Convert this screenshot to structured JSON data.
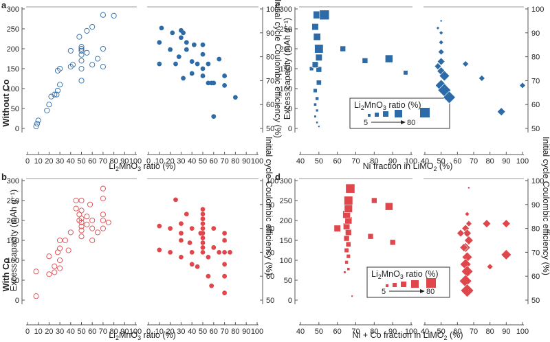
{
  "figure": {
    "row_labels": [
      "Without Co",
      "With Co"
    ],
    "y_label_left": "Excess capacity (mAh g⁻¹)",
    "y_label_right": "Initial cycle Coulombic efficiency (%)"
  },
  "panels": [
    {
      "label": "a",
      "xlabel_parts": [
        "Li",
        "2",
        "MnO",
        "3",
        " ratio (%)"
      ],
      "legend": null
    },
    {
      "label": "b",
      "xlabel_parts": [
        "Li",
        "2",
        "MnO",
        "3",
        " ratio (%)"
      ],
      "legend": null
    },
    {
      "label": "c",
      "xlabel_parts": [
        "Ni fraction in LiMO",
        "2",
        " (%)"
      ],
      "legend": {
        "title_parts": [
          "Li",
          "2",
          "MnO",
          "3",
          " ratio (%)"
        ],
        "from": "5",
        "to": "80"
      }
    },
    {
      "label": "d",
      "xlabel_parts": [
        "Ni + Co fraction in LiMO",
        "2",
        " (%)"
      ],
      "legend": {
        "title_parts": [
          "Li",
          "2",
          "MnO",
          "3",
          " ratio (%)"
        ],
        "from": "5",
        "to": "80"
      }
    }
  ],
  "colors": {
    "blue": "#2c6aa8",
    "red": "#e0474c",
    "axis": "#555555"
  },
  "chart_data": [
    {
      "panel": "a",
      "type": "scatter",
      "marker": "open-circle",
      "color": "#2c6aa8",
      "xlabel": "Li2MnO3 ratio (%)",
      "ylabel": "Excess capacity (mAh g-1)",
      "xlim": [
        0,
        100
      ],
      "ylim": [
        0,
        300
      ],
      "xticks": [
        0,
        10,
        20,
        30,
        40,
        50,
        60,
        70,
        80,
        90,
        100
      ],
      "yticks": [
        0,
        50,
        100,
        150,
        200,
        250,
        300
      ],
      "points": [
        [
          8,
          5
        ],
        [
          9,
          12
        ],
        [
          10,
          20
        ],
        [
          18,
          45
        ],
        [
          20,
          60
        ],
        [
          22,
          80
        ],
        [
          25,
          85
        ],
        [
          27,
          85
        ],
        [
          28,
          95
        ],
        [
          30,
          110
        ],
        [
          28,
          145
        ],
        [
          30,
          150
        ],
        [
          40,
          155
        ],
        [
          42,
          160
        ],
        [
          40,
          195
        ],
        [
          50,
          120
        ],
        [
          50,
          150
        ],
        [
          50,
          170
        ],
        [
          50,
          185
        ],
        [
          50,
          195
        ],
        [
          50,
          200
        ],
        [
          50,
          205
        ],
        [
          48,
          230
        ],
        [
          55,
          190
        ],
        [
          55,
          245
        ],
        [
          60,
          160
        ],
        [
          60,
          255
        ],
        [
          65,
          175
        ],
        [
          70,
          155
        ],
        [
          70,
          200
        ],
        [
          70,
          285
        ],
        [
          80,
          283
        ]
      ]
    },
    {
      "panel": "a-right",
      "type": "scatter",
      "marker": "filled-circle",
      "color": "#2c6aa8",
      "xlabel": "Li2MnO3 ratio (%)",
      "ylabel": "Initial cycle Coulombic efficiency (%)",
      "xlim": [
        0,
        100
      ],
      "ylim": [
        50,
        100
      ],
      "xticks": [
        0,
        10,
        20,
        30,
        40,
        50,
        60,
        70,
        80,
        90,
        100
      ],
      "yticks": [
        50,
        60,
        70,
        80,
        90,
        100
      ],
      "points": [
        [
          10,
          77
        ],
        [
          10,
          86
        ],
        [
          12,
          92
        ],
        [
          20,
          83
        ],
        [
          22,
          90
        ],
        [
          25,
          77
        ],
        [
          28,
          80
        ],
        [
          30,
          88
        ],
        [
          30,
          91
        ],
        [
          32,
          90
        ],
        [
          32,
          71
        ],
        [
          35,
          83
        ],
        [
          35,
          86
        ],
        [
          40,
          73
        ],
        [
          40,
          78
        ],
        [
          42,
          85
        ],
        [
          45,
          77
        ],
        [
          50,
          81
        ],
        [
          50,
          75
        ],
        [
          50,
          85
        ],
        [
          50,
          72
        ],
        [
          55,
          69
        ],
        [
          55,
          77
        ],
        [
          58,
          69
        ],
        [
          60,
          55
        ],
        [
          60,
          69
        ],
        [
          65,
          79
        ],
        [
          70,
          72
        ],
        [
          70,
          68
        ],
        [
          80,
          63
        ]
      ]
    },
    {
      "panel": "b",
      "type": "scatter",
      "marker": "open-circle",
      "color": "#e0474c",
      "xlabel": "Li2MnO3 ratio (%)",
      "ylabel": "Excess capacity (mAh g-1)",
      "xlim": [
        0,
        100
      ],
      "ylim": [
        0,
        300
      ],
      "xticks": [
        0,
        10,
        20,
        30,
        40,
        50,
        60,
        70,
        80,
        90,
        100
      ],
      "yticks": [
        0,
        50,
        100,
        150,
        200,
        250,
        300
      ],
      "points": [
        [
          8,
          10
        ],
        [
          8,
          72
        ],
        [
          20,
          65
        ],
        [
          20,
          110
        ],
        [
          25,
          70
        ],
        [
          25,
          85
        ],
        [
          28,
          120
        ],
        [
          30,
          130
        ],
        [
          30,
          150
        ],
        [
          30,
          80
        ],
        [
          30,
          100
        ],
        [
          35,
          150
        ],
        [
          38,
          125
        ],
        [
          40,
          170
        ],
        [
          45,
          250
        ],
        [
          45,
          230
        ],
        [
          48,
          215
        ],
        [
          48,
          200
        ],
        [
          50,
          160
        ],
        [
          50,
          175
        ],
        [
          50,
          185
        ],
        [
          50,
          195
        ],
        [
          50,
          205
        ],
        [
          50,
          225
        ],
        [
          50,
          250
        ],
        [
          55,
          190
        ],
        [
          55,
          210
        ],
        [
          58,
          240
        ],
        [
          60,
          150
        ],
        [
          60,
          180
        ],
        [
          60,
          200
        ],
        [
          65,
          170
        ],
        [
          70,
          180
        ],
        [
          70,
          200
        ],
        [
          70,
          215
        ],
        [
          70,
          255
        ],
        [
          70,
          280
        ],
        [
          75,
          195
        ]
      ]
    },
    {
      "panel": "b-right",
      "type": "scatter",
      "marker": "filled-circle",
      "color": "#e0474c",
      "xlabel": "Li2MnO3 ratio (%)",
      "ylabel": "Initial cycle Coulombic efficiency (%)",
      "xlim": [
        0,
        100
      ],
      "ylim": [
        50,
        100
      ],
      "xticks": [
        0,
        10,
        20,
        30,
        40,
        50,
        60,
        70,
        80,
        90,
        100
      ],
      "yticks": [
        50,
        60,
        70,
        80,
        90,
        100
      ],
      "points": [
        [
          10,
          71
        ],
        [
          10,
          81
        ],
        [
          20,
          70
        ],
        [
          20,
          80
        ],
        [
          25,
          92
        ],
        [
          30,
          75
        ],
        [
          30,
          78
        ],
        [
          30,
          82
        ],
        [
          30,
          68
        ],
        [
          35,
          86
        ],
        [
          38,
          74
        ],
        [
          40,
          65
        ],
        [
          40,
          70
        ],
        [
          40,
          80
        ],
        [
          45,
          64
        ],
        [
          48,
          78
        ],
        [
          50,
          70
        ],
        [
          50,
          72
        ],
        [
          50,
          74
        ],
        [
          50,
          76
        ],
        [
          50,
          78
        ],
        [
          50,
          80
        ],
        [
          50,
          82
        ],
        [
          50,
          84
        ],
        [
          50,
          86
        ],
        [
          50,
          88
        ],
        [
          55,
          60
        ],
        [
          55,
          68
        ],
        [
          58,
          56
        ],
        [
          60,
          80
        ],
        [
          60,
          72
        ],
        [
          65,
          70
        ],
        [
          70,
          53
        ],
        [
          70,
          60
        ],
        [
          70,
          65
        ],
        [
          70,
          70
        ],
        [
          70,
          75
        ],
        [
          70,
          78
        ],
        [
          75,
          70
        ]
      ]
    },
    {
      "panel": "c",
      "type": "scatter",
      "marker": "square-sized-by-Li2MnO3",
      "color": "#2c6aa8",
      "xlabel": "Ni fraction in LiMO2 (%)",
      "ylabel": "Excess capacity (mAh g-1)",
      "xlim": [
        40,
        100
      ],
      "ylim": [
        0,
        300
      ],
      "xticks": [
        40,
        50,
        60,
        70,
        80,
        90,
        100
      ],
      "yticks": [
        0,
        50,
        100,
        150,
        200,
        250,
        300
      ],
      "size_legend": {
        "from": 5,
        "to": 80
      },
      "points": [
        [
          50,
          5,
          5
        ],
        [
          49,
          15,
          8
        ],
        [
          48,
          30,
          10
        ],
        [
          49,
          45,
          12
        ],
        [
          48,
          60,
          15
        ],
        [
          49,
          75,
          20
        ],
        [
          48,
          95,
          25
        ],
        [
          50,
          115,
          35
        ],
        [
          46,
          150,
          25
        ],
        [
          50,
          148,
          40
        ],
        [
          48,
          160,
          45
        ],
        [
          50,
          178,
          50
        ],
        [
          50,
          200,
          70
        ],
        [
          49,
          230,
          55
        ],
        [
          48,
          255,
          50
        ],
        [
          49,
          285,
          60
        ],
        [
          53,
          285,
          80
        ],
        [
          63,
          200,
          40
        ],
        [
          75,
          170,
          40
        ],
        [
          88,
          175,
          60
        ],
        [
          97,
          140,
          30
        ]
      ]
    },
    {
      "panel": "c-right",
      "type": "scatter",
      "marker": "diamond-sized-by-Li2MnO3",
      "color": "#2c6aa8",
      "xlabel": "Ni fraction in LiMO2 (%)",
      "ylabel": "Initial cycle Coulombic efficiency (%)",
      "xlim": [
        40,
        100
      ],
      "ylim": [
        50,
        100
      ],
      "xticks": [
        40,
        50,
        60,
        70,
        80,
        90,
        100
      ],
      "yticks": [
        50,
        60,
        70,
        80,
        90,
        100
      ],
      "points": [
        [
          50,
          95,
          5
        ],
        [
          48,
          92,
          10
        ],
        [
          50,
          90,
          15
        ],
        [
          50,
          86,
          20
        ],
        [
          50,
          82,
          30
        ],
        [
          50,
          78,
          40
        ],
        [
          50,
          74,
          45
        ],
        [
          52,
          72,
          60
        ],
        [
          50,
          68,
          70
        ],
        [
          52,
          66,
          80
        ],
        [
          55,
          63,
          75
        ],
        [
          48,
          76,
          35
        ],
        [
          65,
          77,
          30
        ],
        [
          75,
          71,
          30
        ],
        [
          87,
          57,
          45
        ],
        [
          100,
          68,
          30
        ]
      ]
    },
    {
      "panel": "d",
      "type": "scatter",
      "marker": "square-sized-by-Li2MnO3",
      "color": "#e0474c",
      "xlabel": "Ni + Co fraction in LiMO2 (%)",
      "ylabel": "Excess capacity (mAh g-1)",
      "xlim": [
        40,
        100
      ],
      "ylim": [
        0,
        300
      ],
      "xticks": [
        40,
        50,
        60,
        70,
        80,
        90,
        100
      ],
      "yticks": [
        0,
        50,
        100,
        150,
        200,
        250,
        300
      ],
      "size_legend": {
        "from": 5,
        "to": 80
      },
      "points": [
        [
          68,
          10,
          5
        ],
        [
          64,
          70,
          10
        ],
        [
          66,
          78,
          15
        ],
        [
          65,
          95,
          20
        ],
        [
          66,
          110,
          25
        ],
        [
          65,
          125,
          30
        ],
        [
          66,
          140,
          35
        ],
        [
          65,
          155,
          40
        ],
        [
          66,
          170,
          45
        ],
        [
          65,
          185,
          50
        ],
        [
          66,
          200,
          55
        ],
        [
          65,
          215,
          60
        ],
        [
          66,
          230,
          65
        ],
        [
          66,
          250,
          70
        ],
        [
          67,
          280,
          75
        ],
        [
          60,
          180,
          50
        ],
        [
          78,
          160,
          40
        ],
        [
          80,
          250,
          40
        ],
        [
          88,
          235,
          60
        ],
        [
          90,
          145,
          40
        ]
      ]
    },
    {
      "panel": "d-right",
      "type": "scatter",
      "marker": "diamond-sized-by-Li2MnO3",
      "color": "#e0474c",
      "xlabel": "Ni + Co fraction in LiMO2 (%)",
      "ylabel": "Initial cycle Coulombic efficiency (%)",
      "xlim": [
        40,
        100
      ],
      "ylim": [
        50,
        100
      ],
      "xticks": [
        40,
        50,
        60,
        70,
        80,
        90,
        100
      ],
      "yticks": [
        50,
        60,
        70,
        80,
        90,
        100
      ],
      "points": [
        [
          67,
          97,
          5
        ],
        [
          66,
          86,
          20
        ],
        [
          67,
          82,
          30
        ],
        [
          65,
          80,
          40
        ],
        [
          66,
          78,
          45
        ],
        [
          67,
          75,
          50
        ],
        [
          65,
          72,
          55
        ],
        [
          66,
          68,
          60
        ],
        [
          65,
          65,
          65
        ],
        [
          66,
          62,
          70
        ],
        [
          65,
          58,
          75
        ],
        [
          66,
          54,
          80
        ],
        [
          62,
          78,
          40
        ],
        [
          64,
          72,
          45
        ],
        [
          78,
          82,
          45
        ],
        [
          80,
          64,
          30
        ],
        [
          90,
          82,
          45
        ],
        [
          90,
          69,
          60
        ]
      ]
    }
  ]
}
